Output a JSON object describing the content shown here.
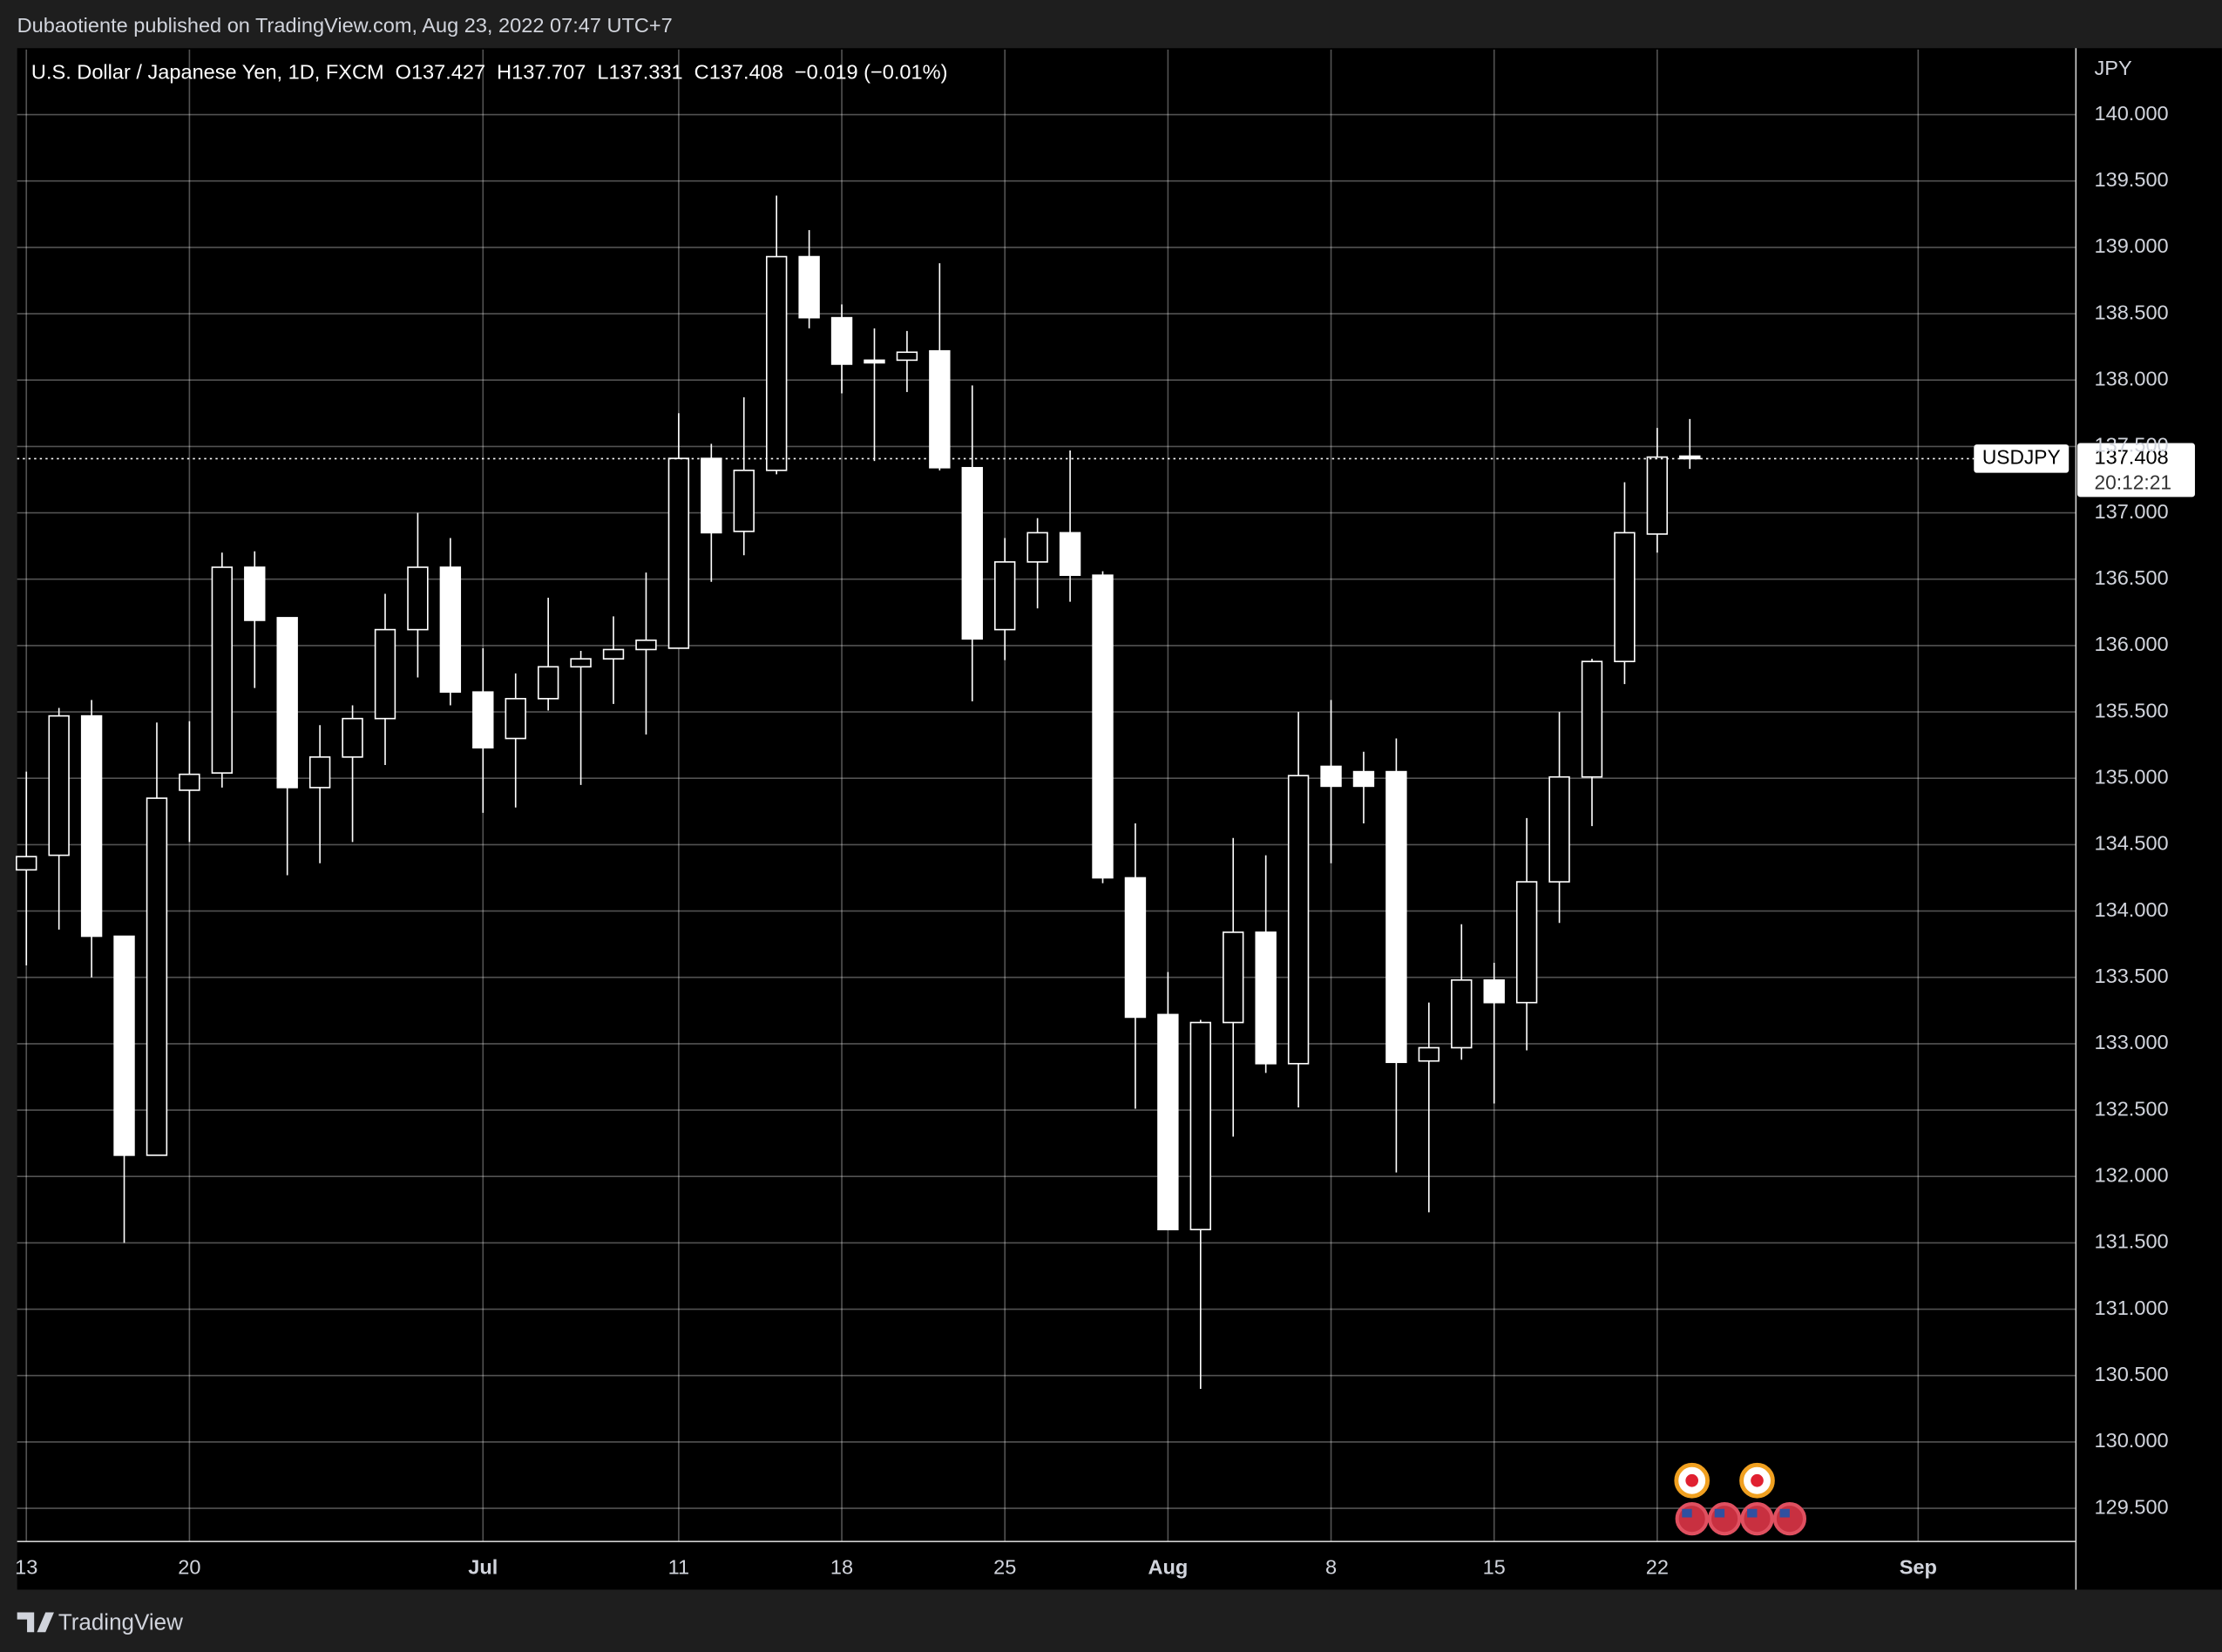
{
  "header": {
    "published": "Dubaotiente published on TradingView.com, Aug 23, 2022 07:47 UTC+7",
    "ohlc_labels": [
      "O",
      "H",
      "L",
      "C"
    ],
    "change": "−0.019 (−0.01%)"
  },
  "price_tag": {
    "symbol": "USDJPY",
    "countdown": "20:12:21"
  },
  "footer": {
    "brand": "TradingView"
  },
  "chart_data": {
    "type": "candlestick",
    "title": "U.S. Dollar / Japanese Yen, 1D, FXCM",
    "y_label": "JPY",
    "grid": true,
    "up_color": "#000000",
    "down_color": "#ffffff",
    "wick_color": "#ffffff",
    "x": [
      "2022-06-13",
      "2022-06-14",
      "2022-06-15",
      "2022-06-16",
      "2022-06-17",
      "2022-06-20",
      "2022-06-21",
      "2022-06-22",
      "2022-06-23",
      "2022-06-24",
      "2022-06-27",
      "2022-06-28",
      "2022-06-29",
      "2022-06-30",
      "2022-07-01",
      "2022-07-04",
      "2022-07-05",
      "2022-07-06",
      "2022-07-07",
      "2022-07-08",
      "2022-07-11",
      "2022-07-12",
      "2022-07-13",
      "2022-07-14",
      "2022-07-15",
      "2022-07-18",
      "2022-07-19",
      "2022-07-20",
      "2022-07-21",
      "2022-07-22",
      "2022-07-25",
      "2022-07-26",
      "2022-07-27",
      "2022-07-28",
      "2022-07-29",
      "2022-08-01",
      "2022-08-02",
      "2022-08-03",
      "2022-08-04",
      "2022-08-05",
      "2022-08-08",
      "2022-08-09",
      "2022-08-10",
      "2022-08-11",
      "2022-08-12",
      "2022-08-15",
      "2022-08-16",
      "2022-08-17",
      "2022-08-18",
      "2022-08-19",
      "2022-08-22",
      "2022-08-23"
    ],
    "open": [
      134.31,
      134.42,
      135.47,
      133.81,
      132.16,
      134.91,
      135.04,
      136.59,
      136.21,
      134.93,
      135.16,
      135.45,
      136.12,
      136.59,
      135.65,
      135.3,
      135.6,
      135.84,
      135.9,
      135.97,
      135.98,
      137.41,
      136.86,
      137.32,
      138.93,
      138.47,
      138.15,
      138.15,
      138.22,
      137.34,
      136.12,
      136.63,
      136.85,
      136.53,
      134.25,
      133.22,
      131.6,
      133.16,
      133.84,
      132.85,
      135.09,
      135.05,
      135.05,
      132.87,
      132.97,
      133.48,
      133.31,
      134.22,
      135.01,
      135.88,
      136.84,
      137.427
    ],
    "high": [
      135.05,
      135.53,
      135.59,
      133.81,
      135.42,
      135.43,
      136.7,
      136.71,
      136.21,
      135.4,
      135.55,
      136.39,
      137.0,
      136.81,
      135.98,
      135.79,
      136.36,
      135.96,
      136.22,
      136.55,
      137.75,
      137.52,
      137.87,
      139.39,
      139.13,
      138.57,
      138.39,
      138.37,
      138.88,
      137.96,
      136.81,
      136.96,
      137.47,
      136.56,
      134.66,
      133.54,
      133.18,
      134.55,
      134.42,
      135.5,
      135.59,
      135.2,
      135.3,
      133.31,
      133.9,
      133.61,
      134.7,
      135.5,
      135.9,
      137.23,
      137.64,
      137.707
    ],
    "low": [
      133.59,
      133.86,
      133.5,
      131.5,
      132.16,
      134.52,
      134.93,
      135.68,
      134.27,
      134.36,
      134.52,
      135.1,
      135.76,
      135.55,
      134.74,
      134.78,
      135.51,
      134.95,
      135.56,
      135.33,
      135.98,
      136.48,
      136.68,
      137.29,
      138.39,
      137.9,
      137.39,
      137.91,
      137.32,
      135.58,
      135.89,
      136.28,
      136.33,
      134.21,
      132.51,
      131.6,
      130.4,
      132.3,
      132.78,
      132.52,
      134.36,
      134.66,
      132.03,
      131.73,
      132.88,
      132.55,
      132.95,
      133.91,
      134.64,
      135.71,
      136.7,
      137.331
    ],
    "close": [
      134.41,
      135.47,
      133.81,
      132.16,
      134.85,
      135.03,
      136.59,
      136.19,
      134.93,
      135.16,
      135.45,
      136.12,
      136.59,
      135.65,
      135.23,
      135.6,
      135.84,
      135.9,
      135.97,
      136.04,
      137.41,
      136.85,
      137.32,
      138.93,
      138.47,
      138.12,
      138.13,
      138.21,
      137.34,
      136.05,
      136.63,
      136.85,
      136.53,
      134.25,
      133.2,
      131.6,
      133.16,
      133.84,
      132.85,
      135.02,
      134.94,
      134.94,
      132.86,
      132.97,
      133.48,
      133.31,
      134.22,
      135.01,
      135.88,
      136.85,
      137.42,
      137.408
    ],
    "ylim": [
      129.25,
      140.49
    ],
    "yticks": [
      {
        "value": 129.5,
        "label": "129.500"
      },
      {
        "value": 130,
        "label": "130.000"
      },
      {
        "value": 130.5,
        "label": "130.500"
      },
      {
        "value": 131,
        "label": "131.000"
      },
      {
        "value": 131.5,
        "label": "131.500"
      },
      {
        "value": 132,
        "label": "132.000"
      },
      {
        "value": 132.5,
        "label": "132.500"
      },
      {
        "value": 133,
        "label": "133.000"
      },
      {
        "value": 133.5,
        "label": "133.500"
      },
      {
        "value": 134,
        "label": "134.000"
      },
      {
        "value": 134.5,
        "label": "134.500"
      },
      {
        "value": 135,
        "label": "135.000"
      },
      {
        "value": 135.5,
        "label": "135.500"
      },
      {
        "value": 136,
        "label": "136.000"
      },
      {
        "value": 136.5,
        "label": "136.500"
      },
      {
        "value": 137,
        "label": "137.000"
      },
      {
        "value": 137.5,
        "label": "137.500"
      },
      {
        "value": 138,
        "label": "138.000"
      },
      {
        "value": 138.5,
        "label": "138.500"
      },
      {
        "value": 139,
        "label": "139.000"
      },
      {
        "value": 139.5,
        "label": "139.500"
      },
      {
        "value": 140,
        "label": "140.000"
      }
    ],
    "xticks": [
      {
        "value": "2022-06-13",
        "label": "13"
      },
      {
        "value": "2022-06-20",
        "label": "20"
      },
      {
        "value": "2022-07-01",
        "label": "Jul"
      },
      {
        "value": "2022-07-11",
        "label": "11"
      },
      {
        "value": "2022-07-18",
        "label": "18"
      },
      {
        "value": "2022-07-25",
        "label": "25"
      },
      {
        "value": "2022-08-01",
        "label": "Aug"
      },
      {
        "value": "2022-08-08",
        "label": "8"
      },
      {
        "value": "2022-08-15",
        "label": "15"
      },
      {
        "value": "2022-08-22",
        "label": "22"
      },
      {
        "value": "2022-09-01",
        "label": "Sep"
      }
    ]
  }
}
